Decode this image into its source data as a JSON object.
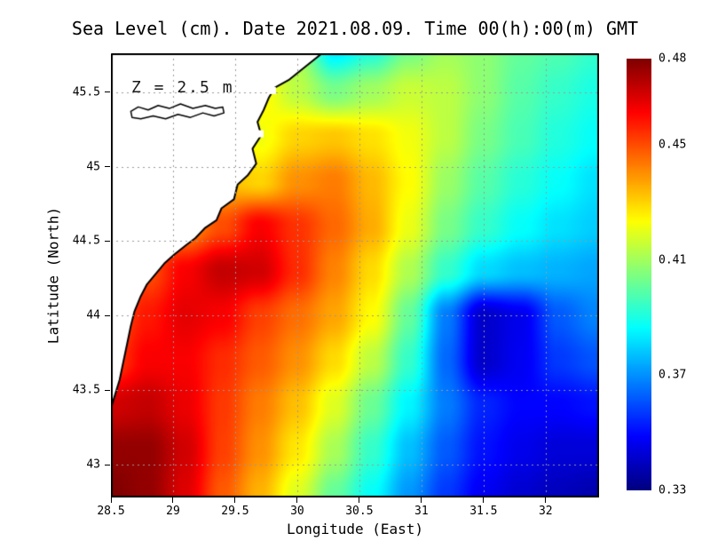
{
  "title": "Sea Level (cm). Date 2021.08.09. Time 00(h):00(m) GMT",
  "annotation": "Z = 2.5 m",
  "axes": {
    "x_label": "Longitude (East)",
    "y_label": "Latitude (North)",
    "x_ticks": [
      {
        "label": "28.5",
        "value": 28.5
      },
      {
        "label": "29",
        "value": 29
      },
      {
        "label": "29.5",
        "value": 29.5
      },
      {
        "label": "30",
        "value": 30
      },
      {
        "label": "30.5",
        "value": 30.5
      },
      {
        "label": "31",
        "value": 31
      },
      {
        "label": "31.5",
        "value": 31.5
      },
      {
        "label": "32",
        "value": 32
      }
    ],
    "y_ticks": [
      {
        "label": "43",
        "value": 43
      },
      {
        "label": "43.5",
        "value": 43.5
      },
      {
        "label": "44",
        "value": 44
      },
      {
        "label": "44.5",
        "value": 44.5
      },
      {
        "label": "45",
        "value": 45
      },
      {
        "label": "45.5",
        "value": 45.5
      }
    ]
  },
  "colorbar": {
    "min": 0.33,
    "max": 0.48,
    "labels": [
      {
        "label": "0.48",
        "value": 0.48
      },
      {
        "label": "0.45",
        "value": 0.45
      },
      {
        "label": "0.41",
        "value": 0.41
      },
      {
        "label": "0.37",
        "value": 0.37
      },
      {
        "label": "0.33",
        "value": 0.33
      }
    ]
  },
  "chart_data": {
    "type": "heatmap",
    "units": "cm",
    "lon_range": [
      28.5,
      32.43
    ],
    "lat_range": [
      42.78,
      45.76
    ],
    "value_range": [
      0.33,
      0.48
    ],
    "colormap": "jet",
    "grid": {
      "lons": [
        28.5,
        28.8,
        29.1,
        29.4,
        29.7,
        30.0,
        30.3,
        30.6,
        30.9,
        31.2,
        31.5,
        31.8,
        32.1,
        32.4
      ],
      "lats": [
        45.8,
        45.5,
        45.2,
        44.9,
        44.6,
        44.3,
        44.0,
        43.7,
        43.4,
        43.1,
        42.8
      ],
      "values": [
        [
          0.425,
          0.425,
          0.425,
          0.428,
          0.43,
          0.41,
          0.382,
          0.39,
          0.403,
          0.41,
          0.407,
          0.401,
          0.398,
          0.394
        ],
        [
          0.425,
          0.426,
          0.427,
          0.428,
          0.425,
          0.414,
          0.404,
          0.41,
          0.416,
          0.414,
          0.407,
          0.399,
          0.394,
          0.39
        ],
        [
          0.425,
          0.426,
          0.428,
          0.43,
          0.422,
          0.43,
          0.432,
          0.428,
          0.422,
          0.414,
          0.404,
          0.397,
          0.391,
          0.387
        ],
        [
          0.428,
          0.43,
          0.432,
          0.434,
          0.43,
          0.44,
          0.443,
          0.434,
          0.424,
          0.409,
          0.399,
          0.392,
          0.387,
          0.382
        ],
        [
          0.43,
          0.435,
          0.44,
          0.45,
          0.462,
          0.454,
          0.446,
          0.436,
          0.421,
          0.404,
          0.394,
          0.387,
          0.382,
          0.379
        ],
        [
          0.44,
          0.45,
          0.462,
          0.47,
          0.468,
          0.455,
          0.442,
          0.429,
          0.412,
          0.394,
          0.381,
          0.377,
          0.375,
          0.373
        ],
        [
          0.448,
          0.458,
          0.465,
          0.462,
          0.452,
          0.445,
          0.437,
          0.424,
          0.401,
          0.367,
          0.341,
          0.346,
          0.362,
          0.368
        ],
        [
          0.452,
          0.462,
          0.462,
          0.455,
          0.448,
          0.44,
          0.429,
          0.414,
          0.394,
          0.364,
          0.341,
          0.347,
          0.357,
          0.361
        ],
        [
          0.468,
          0.47,
          0.464,
          0.453,
          0.443,
          0.433,
          0.419,
          0.402,
          0.385,
          0.367,
          0.354,
          0.349,
          0.349,
          0.351
        ],
        [
          0.477,
          0.477,
          0.468,
          0.452,
          0.44,
          0.427,
          0.411,
          0.394,
          0.377,
          0.362,
          0.351,
          0.346,
          0.343,
          0.343
        ],
        [
          0.48,
          0.477,
          0.466,
          0.448,
          0.435,
          0.419,
          0.401,
          0.387,
          0.371,
          0.357,
          0.347,
          0.342,
          0.339,
          0.337
        ]
      ]
    },
    "coastline": [
      [
        30.2,
        45.76
      ],
      [
        30.05,
        45.66
      ],
      [
        29.93,
        45.58
      ],
      [
        29.82,
        45.53
      ],
      [
        29.77,
        45.46
      ],
      [
        29.73,
        45.38
      ],
      [
        29.68,
        45.3
      ],
      [
        29.71,
        45.21
      ],
      [
        29.64,
        45.12
      ],
      [
        29.67,
        45.02
      ],
      [
        29.6,
        44.94
      ],
      [
        29.52,
        44.88
      ],
      [
        29.49,
        44.78
      ],
      [
        29.39,
        44.72
      ],
      [
        29.35,
        44.64
      ],
      [
        29.26,
        44.59
      ],
      [
        29.18,
        44.52
      ],
      [
        29.1,
        44.47
      ],
      [
        29.01,
        44.41
      ],
      [
        28.93,
        44.35
      ],
      [
        28.86,
        44.28
      ],
      [
        28.79,
        44.21
      ],
      [
        28.74,
        44.13
      ],
      [
        28.69,
        44.03
      ],
      [
        28.66,
        43.93
      ],
      [
        28.63,
        43.81
      ],
      [
        28.6,
        43.69
      ],
      [
        28.57,
        43.57
      ],
      [
        28.53,
        43.46
      ],
      [
        28.5,
        43.38
      ]
    ],
    "lagoon": [
      [
        28.66,
        45.37
      ],
      [
        28.72,
        45.4
      ],
      [
        28.8,
        45.38
      ],
      [
        28.88,
        45.41
      ],
      [
        28.97,
        45.39
      ],
      [
        29.06,
        45.42
      ],
      [
        29.16,
        45.39
      ],
      [
        29.26,
        45.41
      ],
      [
        29.34,
        45.39
      ],
      [
        29.4,
        45.4
      ],
      [
        29.41,
        45.36
      ],
      [
        29.33,
        45.34
      ],
      [
        29.24,
        45.36
      ],
      [
        29.14,
        45.33
      ],
      [
        29.04,
        45.35
      ],
      [
        28.94,
        45.32
      ],
      [
        28.84,
        45.34
      ],
      [
        28.74,
        45.32
      ],
      [
        28.67,
        45.33
      ]
    ],
    "islands": [
      [
        29.8,
        45.51
      ],
      [
        29.7,
        45.22
      ]
    ],
    "style": {
      "land_color": "#ffffff",
      "coast_color": "#000000",
      "gridline_color": "#999999",
      "border_color": "#000000"
    }
  }
}
